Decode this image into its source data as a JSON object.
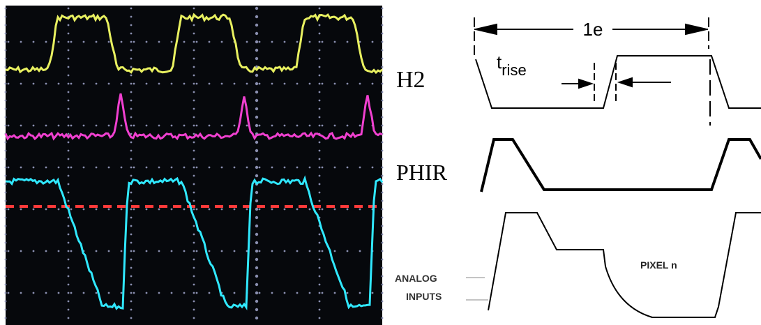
{
  "labels": {
    "period": "1e",
    "t": "t",
    "rise": "rise",
    "h2": "H2",
    "phir": "PHIR",
    "analog": "ANALOG",
    "inputs": "INPUTS",
    "pixel": "PIXEL n"
  }
}
